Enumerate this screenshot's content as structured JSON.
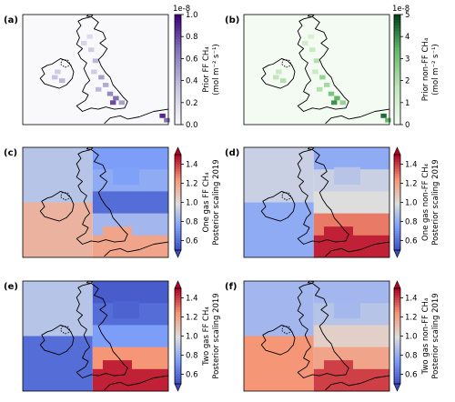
{
  "chart_data": [
    {
      "panel": "(a)",
      "type": "heatmap",
      "colormap": "white-to-purple",
      "scale_exponent": "1e-8",
      "ticks": [
        "0.0",
        "0.2",
        "0.4",
        "0.6",
        "0.8",
        "1.0"
      ],
      "colorbar_label": [
        "Prior FF CH₄",
        "(mol m⁻² s⁻¹)"
      ],
      "range": [
        0.0,
        1.0
      ],
      "extend": "none"
    },
    {
      "panel": "(b)",
      "type": "heatmap",
      "colormap": "white-to-green",
      "scale_exponent": "1e-8",
      "ticks": [
        "0",
        "1",
        "2",
        "3",
        "4",
        "5"
      ],
      "colorbar_label": [
        "Prior non-FF CH₄",
        "(mol m⁻² s⁻¹)"
      ],
      "range": [
        0,
        5
      ],
      "extend": "none"
    },
    {
      "panel": "(c)",
      "type": "heatmap",
      "colormap": "coolwarm",
      "ticks": [
        "0.6",
        "0.8",
        "1.0",
        "1.2",
        "1.4"
      ],
      "colorbar_label": [
        "One gas FF CH₄",
        "Posterior scaling 2019"
      ],
      "range": [
        0.5,
        1.5
      ],
      "extend": "both"
    },
    {
      "panel": "(d)",
      "type": "heatmap",
      "colormap": "coolwarm",
      "ticks": [
        "0.6",
        "0.8",
        "1.0",
        "1.2",
        "1.4"
      ],
      "colorbar_label": [
        "One gas non-FF CH₄",
        "Posterior scaling 2019"
      ],
      "range": [
        0.5,
        1.5
      ],
      "extend": "both"
    },
    {
      "panel": "(e)",
      "type": "heatmap",
      "colormap": "coolwarm",
      "ticks": [
        "0.6",
        "0.8",
        "1.0",
        "1.2",
        "1.4"
      ],
      "colorbar_label": [
        "Two gas FF CH₄",
        "Posterior scaling 2019"
      ],
      "range": [
        0.5,
        1.5
      ],
      "extend": "both"
    },
    {
      "panel": "(f)",
      "type": "heatmap",
      "colormap": "coolwarm",
      "ticks": [
        "0.6",
        "0.8",
        "1.0",
        "1.2",
        "1.4"
      ],
      "colorbar_label": [
        "Two gas non-FF CH₄",
        "Posterior scaling 2019"
      ],
      "range": [
        0.5,
        1.5
      ],
      "extend": "both"
    }
  ]
}
